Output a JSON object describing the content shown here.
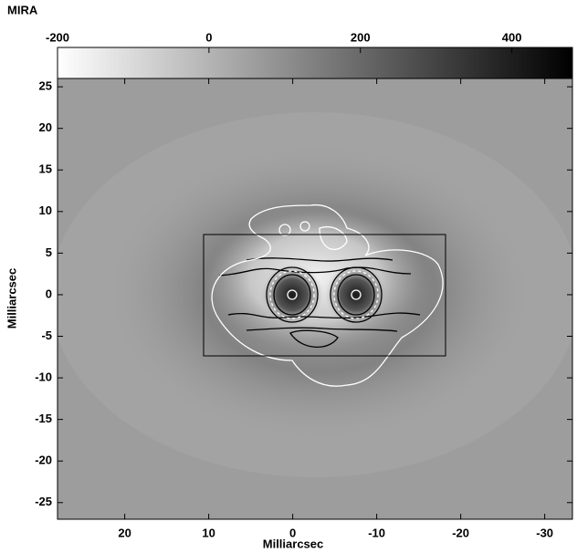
{
  "chart_data": {
    "type": "image",
    "title": "MIRA",
    "xlabel": "Milliarcsec",
    "ylabel": "Milliarcsec",
    "xlim": [
      28,
      -33.3
    ],
    "ylim": [
      -27,
      26
    ],
    "xticks": [
      20,
      10,
      0,
      -10,
      -20,
      -30
    ],
    "yticks": [
      25,
      20,
      15,
      10,
      5,
      0,
      -5,
      -10,
      -15,
      -20,
      -25
    ],
    "colorbar": {
      "lim": [
        -200,
        480
      ],
      "ticks": [
        -200,
        0,
        200,
        400
      ],
      "colors": [
        "#ffffff",
        "#000000"
      ]
    }
  }
}
